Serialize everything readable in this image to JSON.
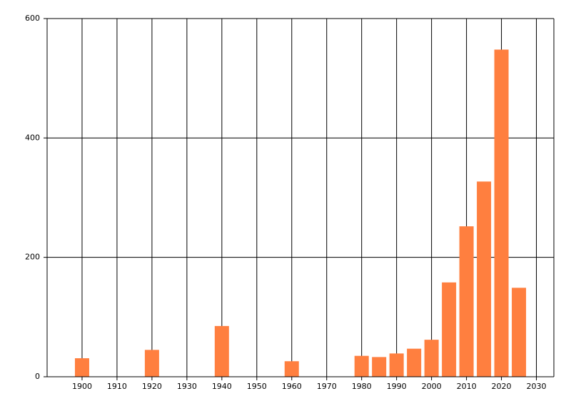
{
  "chart_data": {
    "type": "bar",
    "x": [
      1900,
      1920,
      1940,
      1960,
      1980,
      1985,
      1990,
      1995,
      2000,
      2005,
      2010,
      2015,
      2020,
      2025
    ],
    "values": [
      31,
      45,
      85,
      26,
      35,
      33,
      39,
      47,
      62,
      158,
      252,
      327,
      548,
      149
    ],
    "color": "#ff7f3f",
    "xlim": [
      1890,
      2035
    ],
    "xticks": [
      1900,
      1910,
      1920,
      1930,
      1940,
      1950,
      1960,
      1970,
      1980,
      1990,
      2000,
      2010,
      2020,
      2030
    ],
    "ylim": [
      0,
      600
    ],
    "yticks": [
      0,
      200,
      400,
      600
    ],
    "grid": true
  }
}
